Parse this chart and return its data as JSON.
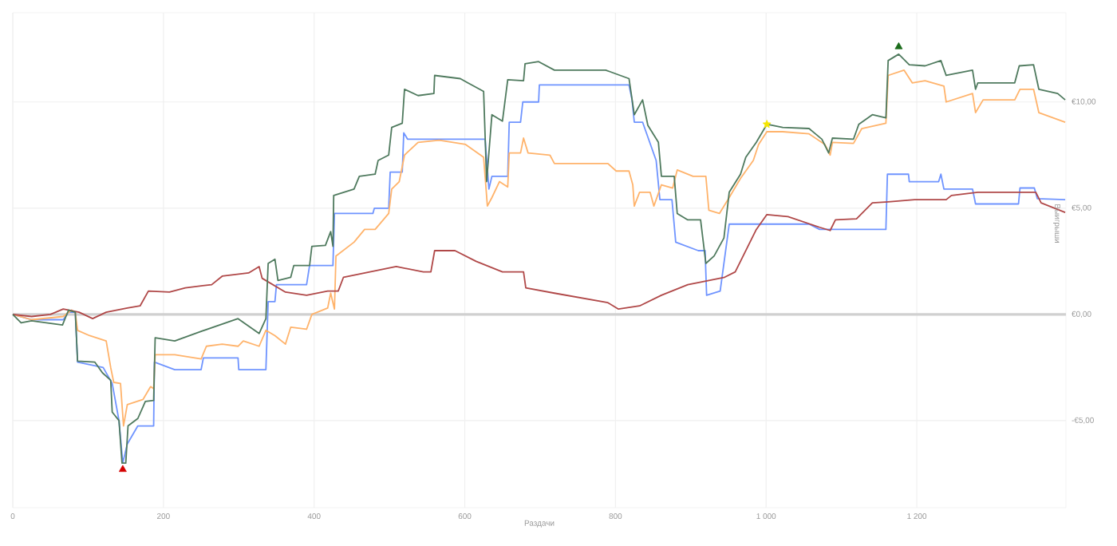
{
  "chart_data": {
    "type": "line",
    "xlabel": "Раздачи",
    "ylabel": "Выигрыши",
    "xlim": [
      0,
      1398
    ],
    "ylim": [
      -9.1,
      14.2
    ],
    "xticks": [
      0,
      200,
      400,
      600,
      800,
      {
        "value": 1000,
        "label": "1 000"
      },
      {
        "value": 1200,
        "label": "1 200"
      }
    ],
    "yticks": [
      {
        "value": -5,
        "label": "-€5,00"
      },
      {
        "value": 0,
        "label": "€0,00"
      },
      {
        "value": 5,
        "label": "€5,00"
      },
      {
        "value": 10,
        "label": "€10,00"
      }
    ],
    "grid": true,
    "marker": "none",
    "line_style": "solid",
    "ref_lines": [
      {
        "axis": "y",
        "value": 0,
        "color": "#d0d0d0"
      }
    ],
    "series": [
      {
        "color": "#6f94ff",
        "x": [
          0,
          25,
          67,
          74,
          83,
          86,
          120,
          132,
          141,
          146,
          152,
          166,
          187,
          188,
          215,
          250,
          253,
          299,
          300,
          336,
          339,
          348,
          350,
          390,
          394,
          425,
          427,
          478,
          480,
          499,
          501,
          517,
          519,
          524,
          627,
          632,
          636,
          657,
          659,
          674,
          677,
          698,
          699,
          719,
          818,
          822,
          825,
          836,
          854,
          859,
          875,
          880,
          910,
          919,
          921,
          939,
          951,
          1057,
          1071,
          1159,
          1161,
          1189,
          1190,
          1229,
          1232,
          1236,
          1274,
          1278,
          1335,
          1337,
          1356,
          1360,
          1397
        ],
        "values": [
          0,
          -0.25,
          -0.25,
          0.1,
          0.1,
          -2.25,
          -2.5,
          -3.25,
          -5,
          -7,
          -6.1,
          -5.25,
          -5.25,
          -2.25,
          -2.6,
          -2.6,
          -2.05,
          -2.05,
          -2.6,
          -2.6,
          0.6,
          0.6,
          1.4,
          1.4,
          2.3,
          2.3,
          4.75,
          4.75,
          5,
          5,
          6.7,
          6.7,
          8.55,
          8.25,
          8.25,
          5.9,
          6.5,
          6.5,
          9.05,
          9.05,
          10,
          10,
          10.8,
          10.8,
          10.8,
          10.1,
          9.05,
          9.05,
          7.25,
          5.4,
          5.4,
          3.4,
          3,
          3,
          0.9,
          1.1,
          4.25,
          4.25,
          4,
          4,
          6.6,
          6.6,
          6.25,
          6.25,
          6.6,
          5.9,
          5.9,
          5.2,
          5.2,
          5.95,
          5.95,
          5.45,
          5.4
        ]
      },
      {
        "color": "#ffb36b",
        "x": [
          0,
          25,
          67,
          78,
          83,
          86,
          102,
          124,
          130,
          134,
          143,
          147,
          152,
          173,
          183,
          187,
          189,
          215,
          250,
          257,
          278,
          299,
          306,
          327,
          336,
          348,
          362,
          369,
          390,
          397,
          418,
          422,
          427,
          429,
          453,
          467,
          481,
          499,
          503,
          513,
          520,
          538,
          566,
          601,
          625,
          630,
          636,
          646,
          657,
          659,
          674,
          678,
          684,
          713,
          719,
          790,
          801,
          818,
          823,
          825,
          832,
          846,
          851,
          861,
          876,
          882,
          903,
          920,
          924,
          938,
          951,
          966,
          983,
          990,
          1001,
          1022,
          1057,
          1078,
          1085,
          1088,
          1116,
          1127,
          1159,
          1162,
          1183,
          1194,
          1211,
          1236,
          1239,
          1274,
          1278,
          1288,
          1330,
          1337,
          1355,
          1362,
          1397
        ],
        "values": [
          0,
          -0.25,
          -0.1,
          0.2,
          0.1,
          -0.75,
          -1,
          -1.25,
          -2.5,
          -3.2,
          -3.25,
          -5.25,
          -4.25,
          -4,
          -3.4,
          -3.5,
          -1.9,
          -1.9,
          -2.1,
          -1.5,
          -1.4,
          -1.5,
          -1.25,
          -1.5,
          -0.75,
          -1,
          -1.4,
          -0.6,
          -0.7,
          0,
          0.3,
          1,
          0.25,
          2.75,
          3.4,
          4,
          4,
          4.75,
          5.9,
          6.25,
          7.5,
          8.1,
          8.2,
          8,
          7.4,
          5.1,
          5.5,
          6.25,
          6,
          7.6,
          7.6,
          8.3,
          7.6,
          7.5,
          7.1,
          7.1,
          6.75,
          6.75,
          6.1,
          5.1,
          5.75,
          5.75,
          5.1,
          6.1,
          5.95,
          6.8,
          6.5,
          6.5,
          4.9,
          4.75,
          5.5,
          6.4,
          7.25,
          8,
          8.6,
          8.6,
          8.5,
          8,
          7.5,
          8.1,
          8.05,
          8.75,
          9,
          11.25,
          11.5,
          10.9,
          11,
          10.75,
          10,
          10.4,
          9.5,
          10.1,
          10.1,
          10.6,
          10.6,
          9.5,
          9.05
        ]
      },
      {
        "color": "#b04848",
        "x": [
          0,
          25,
          50,
          67,
          88,
          106,
          124,
          152,
          169,
          180,
          208,
          229,
          264,
          278,
          313,
          327,
          331,
          362,
          390,
          418,
          432,
          439,
          474,
          509,
          545,
          555,
          560,
          587,
          615,
          650,
          678,
          681,
          719,
          790,
          804,
          832,
          861,
          896,
          924,
          945,
          959,
          987,
          1001,
          1029,
          1071,
          1085,
          1092,
          1120,
          1141,
          1162,
          1197,
          1239,
          1246,
          1281,
          1323,
          1358,
          1365,
          1397
        ],
        "values": [
          0,
          -0.1,
          0,
          0.25,
          0.1,
          -0.2,
          0.1,
          0.3,
          0.4,
          1.1,
          1.05,
          1.25,
          1.4,
          1.8,
          1.95,
          2.25,
          1.7,
          1.05,
          0.9,
          1.1,
          1.1,
          1.75,
          2,
          2.25,
          2,
          2,
          3,
          3,
          2.5,
          2,
          2,
          1.25,
          1,
          0.55,
          0.25,
          0.4,
          0.9,
          1.4,
          1.6,
          1.75,
          2,
          4,
          4.7,
          4.6,
          4.1,
          3.95,
          4.45,
          4.5,
          5.25,
          5.3,
          5.4,
          5.4,
          5.6,
          5.75,
          5.75,
          5.75,
          5.25,
          4.8
        ]
      },
      {
        "color": "#4f7a5e",
        "x": [
          0,
          11,
          25,
          66,
          74,
          83,
          86,
          109,
          119,
          130,
          132,
          141,
          145,
          150,
          153,
          166,
          176,
          187,
          189,
          215,
          250,
          299,
          327,
          336,
          339,
          348,
          352,
          369,
          373,
          394,
          397,
          415,
          422,
          425,
          426,
          453,
          460,
          481,
          485,
          499,
          503,
          517,
          520,
          538,
          559,
          560,
          594,
          604,
          625,
          629,
          636,
          650,
          657,
          678,
          680,
          698,
          719,
          787,
          818,
          825,
          836,
          843,
          857,
          861,
          878,
          882,
          896,
          913,
          920,
          931,
          944,
          951,
          966,
          973,
          987,
          1001,
          1022,
          1057,
          1074,
          1083,
          1088,
          1116,
          1123,
          1141,
          1159,
          1162,
          1176,
          1190,
          1211,
          1232,
          1239,
          1274,
          1278,
          1281,
          1330,
          1336,
          1355,
          1362,
          1387,
          1397
        ],
        "values": [
          0,
          -0.4,
          -0.3,
          -0.5,
          0.2,
          0.1,
          -2.2,
          -2.25,
          -2.75,
          -3.1,
          -4.6,
          -5,
          -7,
          -7,
          -5.25,
          -4.9,
          -4.1,
          -4.05,
          -1.1,
          -1.25,
          -0.8,
          -0.2,
          -0.9,
          -0.2,
          2.4,
          2.6,
          1.6,
          1.75,
          2.3,
          2.3,
          3.2,
          3.25,
          3.9,
          3.2,
          5.6,
          5.9,
          6.5,
          6.6,
          7.25,
          7.5,
          8.8,
          9,
          10.6,
          10.3,
          10.4,
          11.25,
          11.1,
          10.9,
          10.5,
          6.25,
          9.4,
          9.1,
          11.05,
          11,
          11.8,
          11.9,
          11.5,
          11.5,
          11.1,
          9.4,
          10.1,
          8.9,
          8.1,
          6.5,
          6.5,
          4.75,
          4.45,
          4.45,
          2.4,
          2.75,
          3.6,
          5.75,
          6.6,
          7.4,
          8.1,
          8.95,
          8.8,
          8.75,
          8.25,
          7.6,
          8.3,
          8.25,
          8.95,
          9.4,
          9.25,
          11.95,
          12.25,
          11.75,
          11.7,
          11.95,
          11.25,
          11.5,
          10.6,
          10.9,
          10.9,
          11.7,
          11.75,
          10.6,
          10.4,
          10.1
        ]
      },
      {
        "type": "scatter",
        "marker": "triangle",
        "color": "#d40000",
        "x": [
          146
        ],
        "values": [
          -7.3
        ]
      },
      {
        "type": "scatter",
        "marker": "star",
        "color": "#f5e600",
        "x": [
          1001
        ],
        "values": [
          8.95
        ]
      },
      {
        "type": "scatter",
        "marker": "triangle",
        "color": "#1a6b1a",
        "x": [
          1176
        ],
        "values": [
          12.6
        ]
      }
    ]
  }
}
